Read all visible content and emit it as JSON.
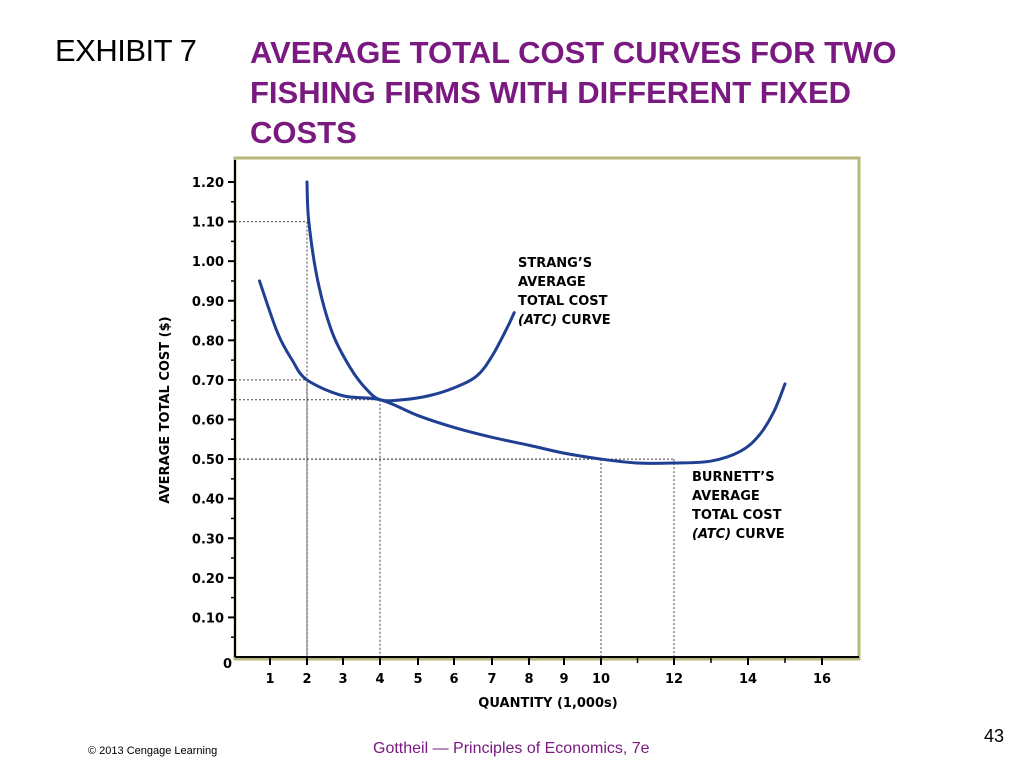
{
  "slide": {
    "exhibit": "EXHIBIT 7",
    "title_lines": [
      "AVERAGE TOTAL COST CURVES FOR TWO",
      "FISHING FIRMS WITH DIFFERENT FIXED",
      "COSTS"
    ],
    "copyright": "© 2013 Cengage Learning",
    "book": "Gottheil — Principles of Economics, 7e",
    "page_number": "43"
  },
  "colors": {
    "title": "#7a1a80",
    "curve": "#1f3f93",
    "frame": "#b7b87a"
  },
  "chart_data": {
    "type": "line",
    "xlabel": "QUANTITY (1,000s)",
    "ylabel": "AVERAGE TOTAL COST ($)",
    "origin_label": "0",
    "x_ticks": [
      {
        "value": 1,
        "label": "1"
      },
      {
        "value": 2,
        "label": "2"
      },
      {
        "value": 3,
        "label": "3"
      },
      {
        "value": 4,
        "label": "4"
      },
      {
        "value": 5,
        "label": "5"
      },
      {
        "value": 6,
        "label": "6"
      },
      {
        "value": 7,
        "label": "7"
      },
      {
        "value": 8,
        "label": "8"
      },
      {
        "value": 9,
        "label": "9"
      },
      {
        "value": 10,
        "label": "10"
      },
      {
        "value": 12,
        "label": "12"
      },
      {
        "value": 14,
        "label": "14"
      },
      {
        "value": 16,
        "label": "16"
      }
    ],
    "y_ticks": [
      {
        "value": 0.1,
        "label": "0.10"
      },
      {
        "value": 0.2,
        "label": "0.20"
      },
      {
        "value": 0.3,
        "label": "0.30"
      },
      {
        "value": 0.4,
        "label": "0.40"
      },
      {
        "value": 0.5,
        "label": "0.50"
      },
      {
        "value": 0.6,
        "label": "0.60"
      },
      {
        "value": 0.7,
        "label": "0.70"
      },
      {
        "value": 0.8,
        "label": "0.80"
      },
      {
        "value": 0.9,
        "label": "0.90"
      },
      {
        "value": 1.0,
        "label": "1.00"
      },
      {
        "value": 1.1,
        "label": "1.10"
      },
      {
        "value": 1.2,
        "label": "1.20"
      }
    ],
    "ylim": [
      0,
      1.2
    ],
    "series": [
      {
        "name": "STRANG'S AVERAGE TOTAL COST (ATC) CURVE",
        "label_lines": [
          "STRANG’S",
          "AVERAGE",
          "TOTAL COST",
          "(ATC) CURVE"
        ],
        "points": [
          [
            2,
            1.2
          ],
          [
            2.05,
            1.1
          ],
          [
            2.3,
            0.95
          ],
          [
            2.7,
            0.82
          ],
          [
            3.2,
            0.73
          ],
          [
            3.6,
            0.68
          ],
          [
            4,
            0.65
          ],
          [
            4.6,
            0.65
          ],
          [
            5.3,
            0.66
          ],
          [
            6,
            0.68
          ],
          [
            6.6,
            0.71
          ],
          [
            7,
            0.76
          ],
          [
            7.4,
            0.83
          ],
          [
            7.6,
            0.87
          ]
        ]
      },
      {
        "name": "BURNETT'S AVERAGE TOTAL COST (ATC) CURVE",
        "label_lines": [
          "BURNETT’S",
          "AVERAGE",
          "TOTAL COST",
          "(ATC) CURVE"
        ],
        "points": [
          [
            0.7,
            0.95
          ],
          [
            1.2,
            0.82
          ],
          [
            1.6,
            0.75
          ],
          [
            2,
            0.7
          ],
          [
            3,
            0.66
          ],
          [
            4,
            0.65
          ],
          [
            5,
            0.61
          ],
          [
            6,
            0.58
          ],
          [
            7,
            0.555
          ],
          [
            8,
            0.535
          ],
          [
            9,
            0.515
          ],
          [
            10,
            0.5
          ],
          [
            11,
            0.49
          ],
          [
            12,
            0.49
          ],
          [
            13,
            0.495
          ],
          [
            13.8,
            0.52
          ],
          [
            14.3,
            0.56
          ],
          [
            14.7,
            0.62
          ],
          [
            15,
            0.69
          ]
        ]
      }
    ],
    "reference_lines": [
      {
        "x": 2,
        "y": 1.1
      },
      {
        "x": 2,
        "y": 0.7
      },
      {
        "x": 4,
        "y": 0.65
      },
      {
        "x": 10,
        "y": 0.5
      },
      {
        "x": 12,
        "y": 0.5
      }
    ]
  }
}
